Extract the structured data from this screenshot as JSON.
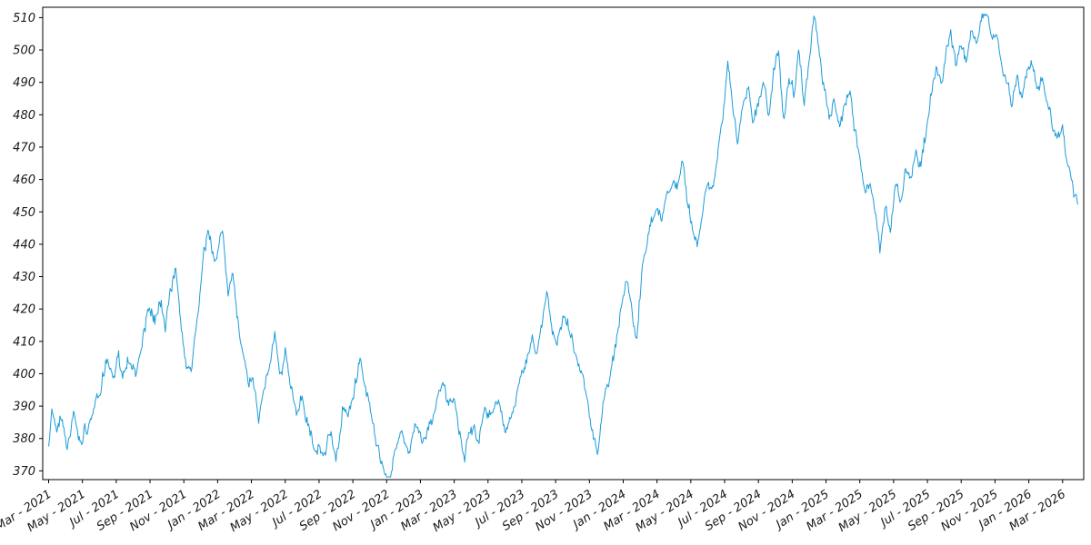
{
  "chart_data": {
    "type": "line",
    "title": "",
    "xlabel": "",
    "ylabel": "",
    "legend": "none",
    "grid": false,
    "line_color": "#1e9cd8",
    "spine_color": "#000000",
    "y_ticks": [
      370,
      380,
      390,
      400,
      410,
      420,
      430,
      440,
      450,
      460,
      470,
      480,
      490,
      500,
      510
    ],
    "ylim": [
      367.3,
      513.2
    ],
    "x_domain_months": [
      -0.35,
      61.25
    ],
    "data_months": [
      0,
      60.9
    ],
    "x_tick_months": [
      0,
      2,
      4,
      6,
      8,
      10,
      12,
      14,
      16,
      18,
      20,
      22,
      24,
      26,
      28,
      30,
      32,
      34,
      36,
      38,
      40,
      42,
      44,
      46,
      48,
      50,
      52,
      54,
      56,
      58,
      60
    ],
    "x_tick_labels": [
      "Mar - 2021",
      "May - 2021",
      "Jul - 2021",
      "Sep - 2021",
      "Nov - 2021",
      "Jan - 2022",
      "Mar - 2022",
      "May - 2022",
      "Jul - 2022",
      "Sep - 2022",
      "Nov - 2022",
      "Jan - 2023",
      "Mar - 2023",
      "May - 2023",
      "Jul - 2023",
      "Sep - 2023",
      "Nov - 2023",
      "Jan - 2024",
      "Mar - 2024",
      "May - 2024",
      "Jul - 2024",
      "Sep - 2024",
      "Nov - 2024",
      "Jan - 2025",
      "Mar - 2025",
      "May - 2025",
      "Jul - 2025",
      "Sep - 2025",
      "Nov - 2025",
      "Jan - 2026",
      "Mar - 2026"
    ],
    "anchors": [
      [
        0,
        376
      ],
      [
        0.2,
        389
      ],
      [
        0.5,
        383
      ],
      [
        0.8,
        387
      ],
      [
        1.1,
        379
      ],
      [
        1.5,
        389
      ],
      [
        1.9,
        378
      ],
      [
        2.3,
        383
      ],
      [
        2.7,
        390
      ],
      [
        3.1,
        397
      ],
      [
        3.4,
        404
      ],
      [
        3.8,
        400
      ],
      [
        4.1,
        408
      ],
      [
        4.4,
        399
      ],
      [
        4.8,
        404
      ],
      [
        5.2,
        401
      ],
      [
        5.6,
        412
      ],
      [
        6.0,
        422
      ],
      [
        6.3,
        416
      ],
      [
        6.6,
        424
      ],
      [
        6.9,
        414
      ],
      [
        7.2,
        424
      ],
      [
        7.5,
        431
      ],
      [
        7.9,
        412
      ],
      [
        8.2,
        401
      ],
      [
        8.5,
        404
      ],
      [
        8.9,
        421
      ],
      [
        9.2,
        435
      ],
      [
        9.5,
        442
      ],
      [
        9.8,
        434
      ],
      [
        10.1,
        441
      ],
      [
        10.3,
        443
      ],
      [
        10.6,
        425
      ],
      [
        10.9,
        431
      ],
      [
        11.2,
        416
      ],
      [
        11.5,
        404
      ],
      [
        11.8,
        396
      ],
      [
        12.1,
        399
      ],
      [
        12.4,
        388
      ],
      [
        12.8,
        396
      ],
      [
        13.1,
        402
      ],
      [
        13.4,
        410
      ],
      [
        13.7,
        400
      ],
      [
        14.0,
        406
      ],
      [
        14.3,
        395
      ],
      [
        14.7,
        386
      ],
      [
        15.0,
        393
      ],
      [
        15.3,
        386
      ],
      [
        15.7,
        376
      ],
      [
        16.0,
        380
      ],
      [
        16.3,
        374
      ],
      [
        16.7,
        381
      ],
      [
        17.0,
        377
      ],
      [
        17.4,
        391
      ],
      [
        17.7,
        386
      ],
      [
        18.1,
        398
      ],
      [
        18.4,
        406
      ],
      [
        18.7,
        398
      ],
      [
        19.0,
        391
      ],
      [
        19.4,
        379
      ],
      [
        19.8,
        372
      ],
      [
        20.1,
        369
      ],
      [
        20.5,
        377
      ],
      [
        20.9,
        383
      ],
      [
        21.3,
        376
      ],
      [
        21.7,
        385
      ],
      [
        22.1,
        377
      ],
      [
        22.5,
        382
      ],
      [
        22.9,
        389
      ],
      [
        23.3,
        397
      ],
      [
        23.7,
        390
      ],
      [
        24.0,
        391
      ],
      [
        24.3,
        381
      ],
      [
        24.6,
        377
      ],
      [
        25.0,
        383
      ],
      [
        25.4,
        379
      ],
      [
        25.8,
        389
      ],
      [
        26.2,
        386
      ],
      [
        26.6,
        390
      ],
      [
        27.0,
        383
      ],
      [
        27.4,
        388
      ],
      [
        27.8,
        394
      ],
      [
        28.2,
        403
      ],
      [
        28.6,
        413
      ],
      [
        28.9,
        408
      ],
      [
        29.2,
        419
      ],
      [
        29.5,
        426
      ],
      [
        29.8,
        413
      ],
      [
        30.1,
        409
      ],
      [
        30.5,
        417
      ],
      [
        30.9,
        412
      ],
      [
        31.3,
        403
      ],
      [
        31.7,
        396
      ],
      [
        32.1,
        383
      ],
      [
        32.5,
        375
      ],
      [
        32.8,
        392
      ],
      [
        33.1,
        397
      ],
      [
        33.5,
        406
      ],
      [
        33.9,
        420
      ],
      [
        34.2,
        430
      ],
      [
        34.5,
        422
      ],
      [
        34.8,
        412
      ],
      [
        35.1,
        432
      ],
      [
        35.4,
        440
      ],
      [
        35.7,
        446
      ],
      [
        36.0,
        452
      ],
      [
        36.3,
        448
      ],
      [
        36.6,
        457
      ],
      [
        36.9,
        461
      ],
      [
        37.2,
        458
      ],
      [
        37.5,
        466
      ],
      [
        37.8,
        452
      ],
      [
        38.1,
        445
      ],
      [
        38.4,
        441
      ],
      [
        38.7,
        452
      ],
      [
        39.0,
        461
      ],
      [
        39.3,
        457
      ],
      [
        39.6,
        467
      ],
      [
        39.9,
        478
      ],
      [
        40.2,
        497
      ],
      [
        40.5,
        480
      ],
      [
        40.8,
        470
      ],
      [
        41.1,
        482
      ],
      [
        41.4,
        490
      ],
      [
        41.7,
        477
      ],
      [
        42.0,
        483
      ],
      [
        42.3,
        490
      ],
      [
        42.6,
        480
      ],
      [
        42.9,
        493
      ],
      [
        43.2,
        499
      ],
      [
        43.5,
        479
      ],
      [
        43.8,
        490
      ],
      [
        44.1,
        485
      ],
      [
        44.4,
        503
      ],
      [
        44.7,
        481
      ],
      [
        45.0,
        495
      ],
      [
        45.3,
        508
      ],
      [
        45.6,
        497
      ],
      [
        45.9,
        489
      ],
      [
        46.2,
        480
      ],
      [
        46.5,
        486
      ],
      [
        46.8,
        477
      ],
      [
        47.1,
        483
      ],
      [
        47.4,
        487
      ],
      [
        47.7,
        475
      ],
      [
        48.0,
        468
      ],
      [
        48.3,
        455
      ],
      [
        48.6,
        459
      ],
      [
        48.9,
        450
      ],
      [
        49.2,
        440
      ],
      [
        49.5,
        453
      ],
      [
        49.8,
        444
      ],
      [
        50.1,
        458
      ],
      [
        50.4,
        452
      ],
      [
        50.7,
        464
      ],
      [
        51.0,
        459
      ],
      [
        51.3,
        470
      ],
      [
        51.6,
        464
      ],
      [
        51.9,
        474
      ],
      [
        52.2,
        486
      ],
      [
        52.5,
        495
      ],
      [
        52.8,
        489
      ],
      [
        53.1,
        499
      ],
      [
        53.4,
        504
      ],
      [
        53.7,
        494
      ],
      [
        54.0,
        501
      ],
      [
        54.3,
        497
      ],
      [
        54.6,
        507
      ],
      [
        54.9,
        500
      ],
      [
        55.2,
        510
      ],
      [
        55.5,
        513
      ],
      [
        55.8,
        502
      ],
      [
        56.1,
        508
      ],
      [
        56.4,
        497
      ],
      [
        56.7,
        490
      ],
      [
        57.0,
        483
      ],
      [
        57.3,
        492
      ],
      [
        57.6,
        486
      ],
      [
        57.9,
        493
      ],
      [
        58.2,
        497
      ],
      [
        58.5,
        488
      ],
      [
        58.8,
        493
      ],
      [
        59.1,
        483
      ],
      [
        59.4,
        476
      ],
      [
        59.7,
        470
      ],
      [
        60.0,
        476
      ],
      [
        60.3,
        467
      ],
      [
        60.6,
        458
      ],
      [
        60.9,
        453
      ]
    ],
    "noise": {
      "seed": 20210301,
      "points": 1280,
      "walk_decay": 0.82,
      "walk_step": 2.6,
      "jitter": 2.2
    }
  }
}
